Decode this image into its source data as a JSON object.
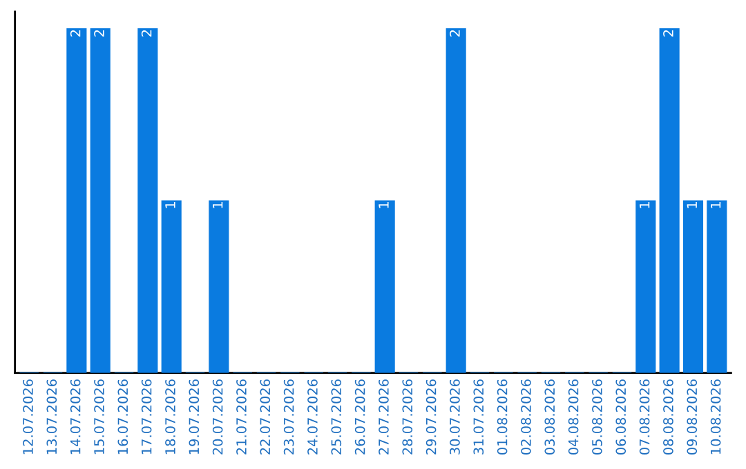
{
  "chart_data": {
    "type": "bar",
    "categories": [
      "12.07.2026",
      "13.07.2026",
      "14.07.2026",
      "15.07.2026",
      "16.07.2026",
      "17.07.2026",
      "18.07.2026",
      "19.07.2026",
      "20.07.2026",
      "21.07.2026",
      "22.07.2026",
      "23.07.2026",
      "24.07.2026",
      "25.07.2026",
      "26.07.2026",
      "27.07.2026",
      "28.07.2026",
      "29.07.2026",
      "30.07.2026",
      "31.07.2026",
      "01.08.2026",
      "02.08.2026",
      "03.08.2026",
      "04.08.2026",
      "05.08.2026",
      "06.08.2026",
      "07.08.2026",
      "08.08.2026",
      "09.08.2026",
      "10.08.2026"
    ],
    "values": [
      0,
      0,
      2,
      2,
      0,
      2,
      1,
      0,
      1,
      0,
      0,
      0,
      0,
      0,
      0,
      1,
      0,
      0,
      2,
      0,
      0,
      0,
      0,
      0,
      0,
      0,
      1,
      2,
      1,
      1
    ],
    "value_labels": [
      null,
      null,
      "2",
      "2",
      null,
      "2",
      "1",
      null,
      "1",
      null,
      null,
      null,
      null,
      null,
      null,
      "1",
      null,
      null,
      "2",
      null,
      null,
      null,
      null,
      null,
      null,
      null,
      "1",
      "2",
      "1",
      "1"
    ],
    "color": "#0a7be0",
    "tick_labels": "x"
  }
}
